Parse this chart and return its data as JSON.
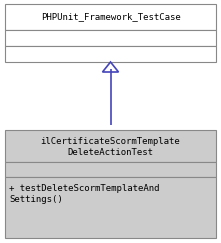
{
  "parent_class": "PHPUnit_Framework_TestCase",
  "child_class_line1": "ilCertificateScormTemplate",
  "child_class_line2": "DeleteActionTest",
  "method_line1": "+ testDeleteScormTemplateAnd",
  "method_line2": "Settings()",
  "bg_parent": "#ffffff",
  "bg_child": "#cccccc",
  "border_color": "#888888",
  "arrow_color": "#4444bb",
  "font_size": 6.5,
  "fig_width": 2.21,
  "fig_height": 2.43,
  "dpi": 100
}
